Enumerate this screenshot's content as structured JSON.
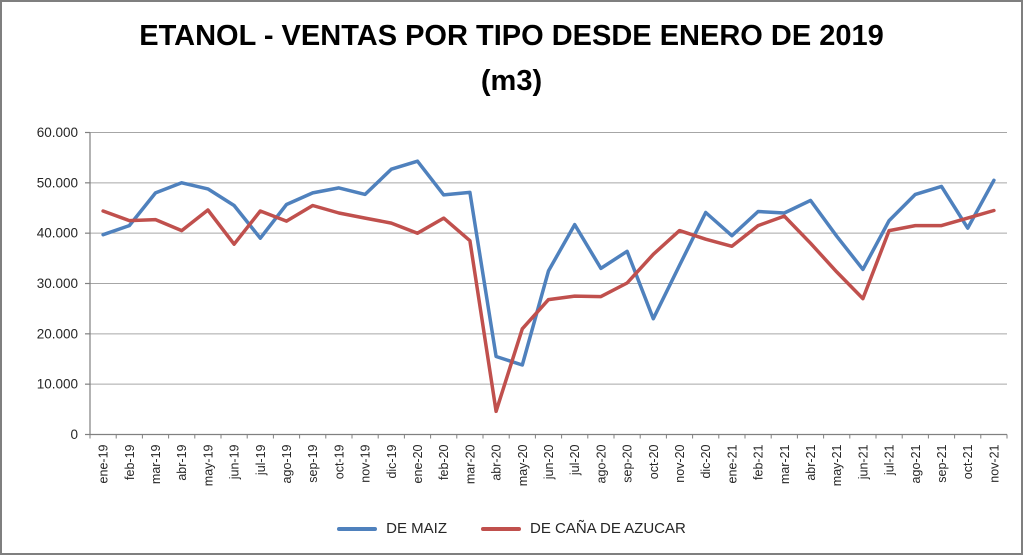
{
  "chart_data": {
    "type": "line",
    "title": "ETANOL - VENTAS POR TIPO DESDE ENERO DE 2019",
    "subtitle": "(m3)",
    "categories": [
      "ene-19",
      "feb-19",
      "mar-19",
      "abr-19",
      "may-19",
      "jun-19",
      "jul-19",
      "ago-19",
      "sep-19",
      "oct-19",
      "nov-19",
      "dic-19",
      "ene-20",
      "feb-20",
      "mar-20",
      "abr-20",
      "may-20",
      "jun-20",
      "jul-20",
      "ago-20",
      "sep-20",
      "oct-20",
      "nov-20",
      "dic-20",
      "ene-21",
      "feb-21",
      "mar-21",
      "abr-21",
      "may-21",
      "jun-21",
      "jul-21",
      "ago-21",
      "sep-21",
      "oct-21",
      "nov-21"
    ],
    "series": [
      {
        "name": "DE MAIZ",
        "color": "#4F81BD",
        "values": [
          39700,
          41500,
          48000,
          50000,
          48800,
          45500,
          39000,
          45700,
          48000,
          49000,
          47700,
          52700,
          54300,
          47600,
          48100,
          15500,
          13800,
          32500,
          41700,
          33000,
          36400,
          23000,
          33600,
          44100,
          39500,
          44300,
          44000,
          46500,
          39400,
          32800,
          42500,
          47700,
          49300,
          41000,
          50500
        ]
      },
      {
        "name": "DE CAÑA DE AZUCAR",
        "color": "#C0504D",
        "values": [
          44400,
          42500,
          42700,
          40500,
          44600,
          37800,
          44400,
          42400,
          45500,
          44000,
          43000,
          42000,
          40000,
          43000,
          38500,
          4600,
          21000,
          26800,
          27500,
          27400,
          30100,
          35800,
          40500,
          38800,
          37400,
          41500,
          43400,
          38000,
          32300,
          27000,
          40500,
          41500,
          41500,
          43000,
          44500
        ]
      }
    ],
    "ylim": [
      0,
      60000
    ],
    "ytick_step": 10000,
    "ytick_labels": [
      "0",
      "10.000",
      "20.000",
      "30.000",
      "40.000",
      "50.000",
      "60.000"
    ],
    "grid": true,
    "legend_position": "bottom",
    "gridline_color": "#A6A6A6",
    "axis_color": "#808080",
    "tick_text_color": "#262626"
  }
}
